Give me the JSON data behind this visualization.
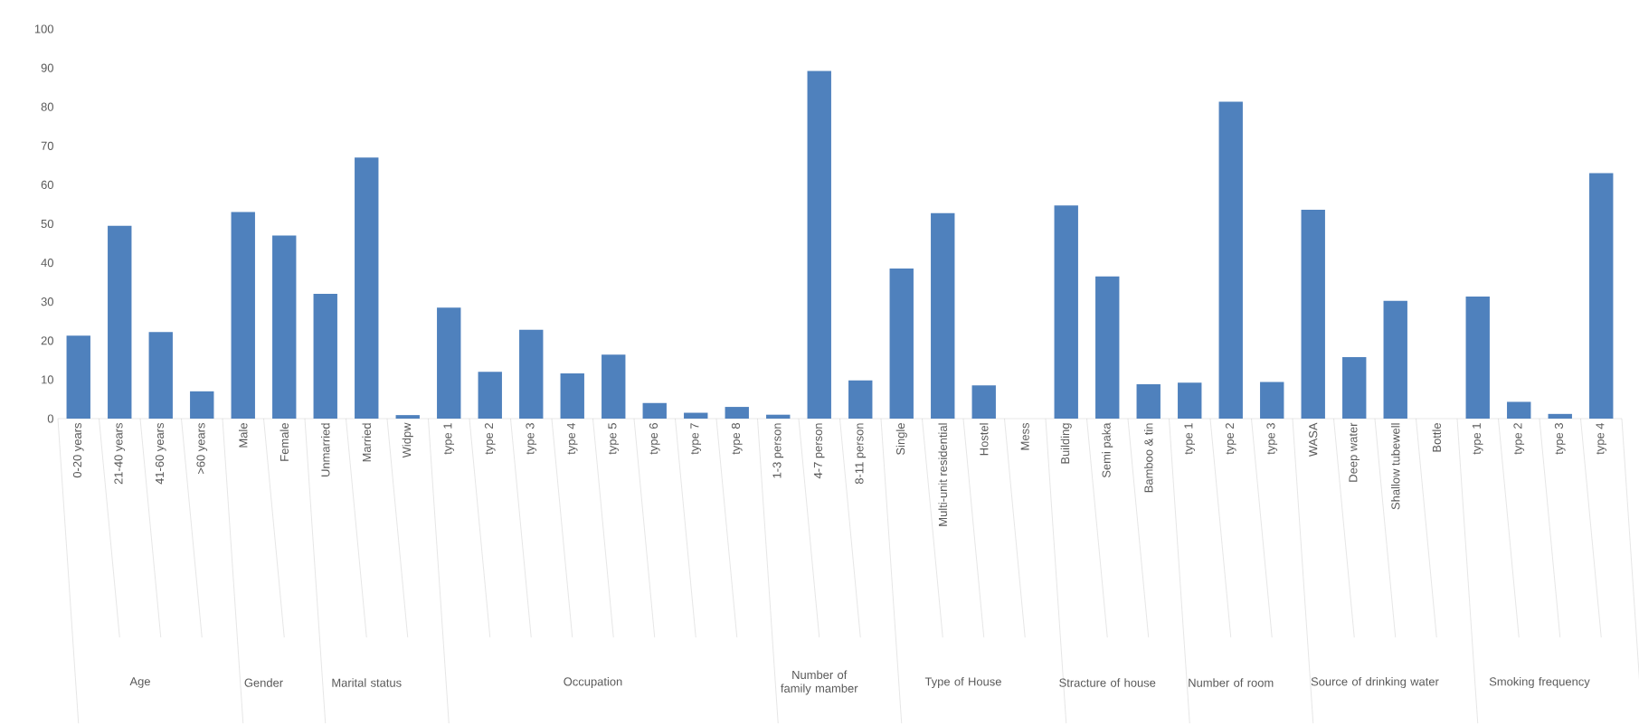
{
  "chart_data": {
    "type": "bar",
    "categories": [
      "0-20 years",
      "21-40 years",
      "41-60 years",
      ">60 years",
      "Male",
      "Female",
      "Unmarried",
      "Married",
      "Widpw",
      "type 1",
      "type 2",
      "type 3",
      "type 4",
      "type 5",
      "type 6",
      "type 7",
      "type 8",
      "1-3 person",
      "4-7 person",
      "8-11 person",
      "Single",
      "Multi-unit residential",
      "Hostel",
      "Mess",
      "Building",
      "Semi paka",
      "Bamboo & tin",
      "type 1",
      "type 2",
      "type 3",
      "WASA",
      "Deep water",
      "Shallow tubewell",
      "Bottle",
      "type 1",
      "type 2",
      "type 3",
      "type 4"
    ],
    "values": [
      21.3,
      49.5,
      22.2,
      7.0,
      53,
      47,
      32,
      67,
      0.9,
      28.5,
      12,
      22.8,
      11.6,
      16.4,
      4,
      1.5,
      3,
      1,
      89.2,
      9.8,
      38.5,
      52.7,
      8.5,
      0,
      54.7,
      36.5,
      8.8,
      9.2,
      81.3,
      9.4,
      53.6,
      15.8,
      30.2,
      0,
      31.3,
      4.3,
      1.2,
      63
    ],
    "color": "#4f81bd",
    "ylim": [
      0,
      100
    ],
    "yticks": [
      0,
      10,
      20,
      30,
      40,
      50,
      60,
      70,
      80,
      90,
      100
    ],
    "annotations": [
      "Age",
      "Gender",
      "Marital status",
      "Occupation",
      "Number of family mamber",
      "Type of House",
      "Stracture of house",
      "Number of room",
      "Source of drinking water",
      "Smoking frequency"
    ]
  }
}
